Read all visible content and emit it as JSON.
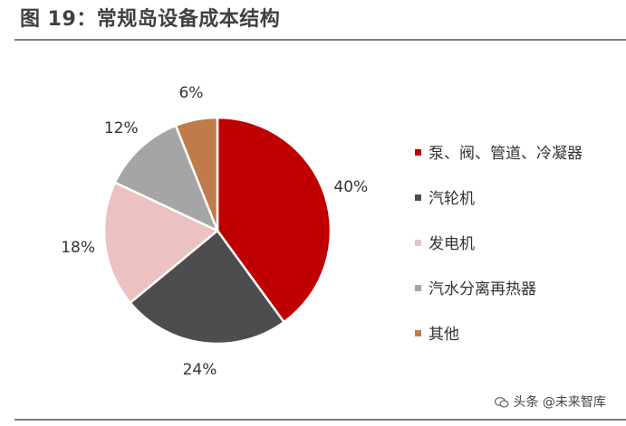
{
  "chart_data": {
    "type": "pie",
    "title": "图 19：常规岛设备成本结构",
    "categories": [
      "泵、阀、管道、冷凝器",
      "汽轮机",
      "发电机",
      "汽水分离再热器",
      "其他"
    ],
    "values": [
      40,
      24,
      18,
      12,
      6
    ],
    "labels": [
      "40%",
      "24%",
      "18%",
      "12%",
      "6%"
    ],
    "colors": [
      "#c00000",
      "#4d4d4f",
      "#ebc1c1",
      "#a5a5a5",
      "#c07b4a"
    ],
    "legend_position": "right"
  },
  "watermark": {
    "text": "头条 @未来智库"
  }
}
